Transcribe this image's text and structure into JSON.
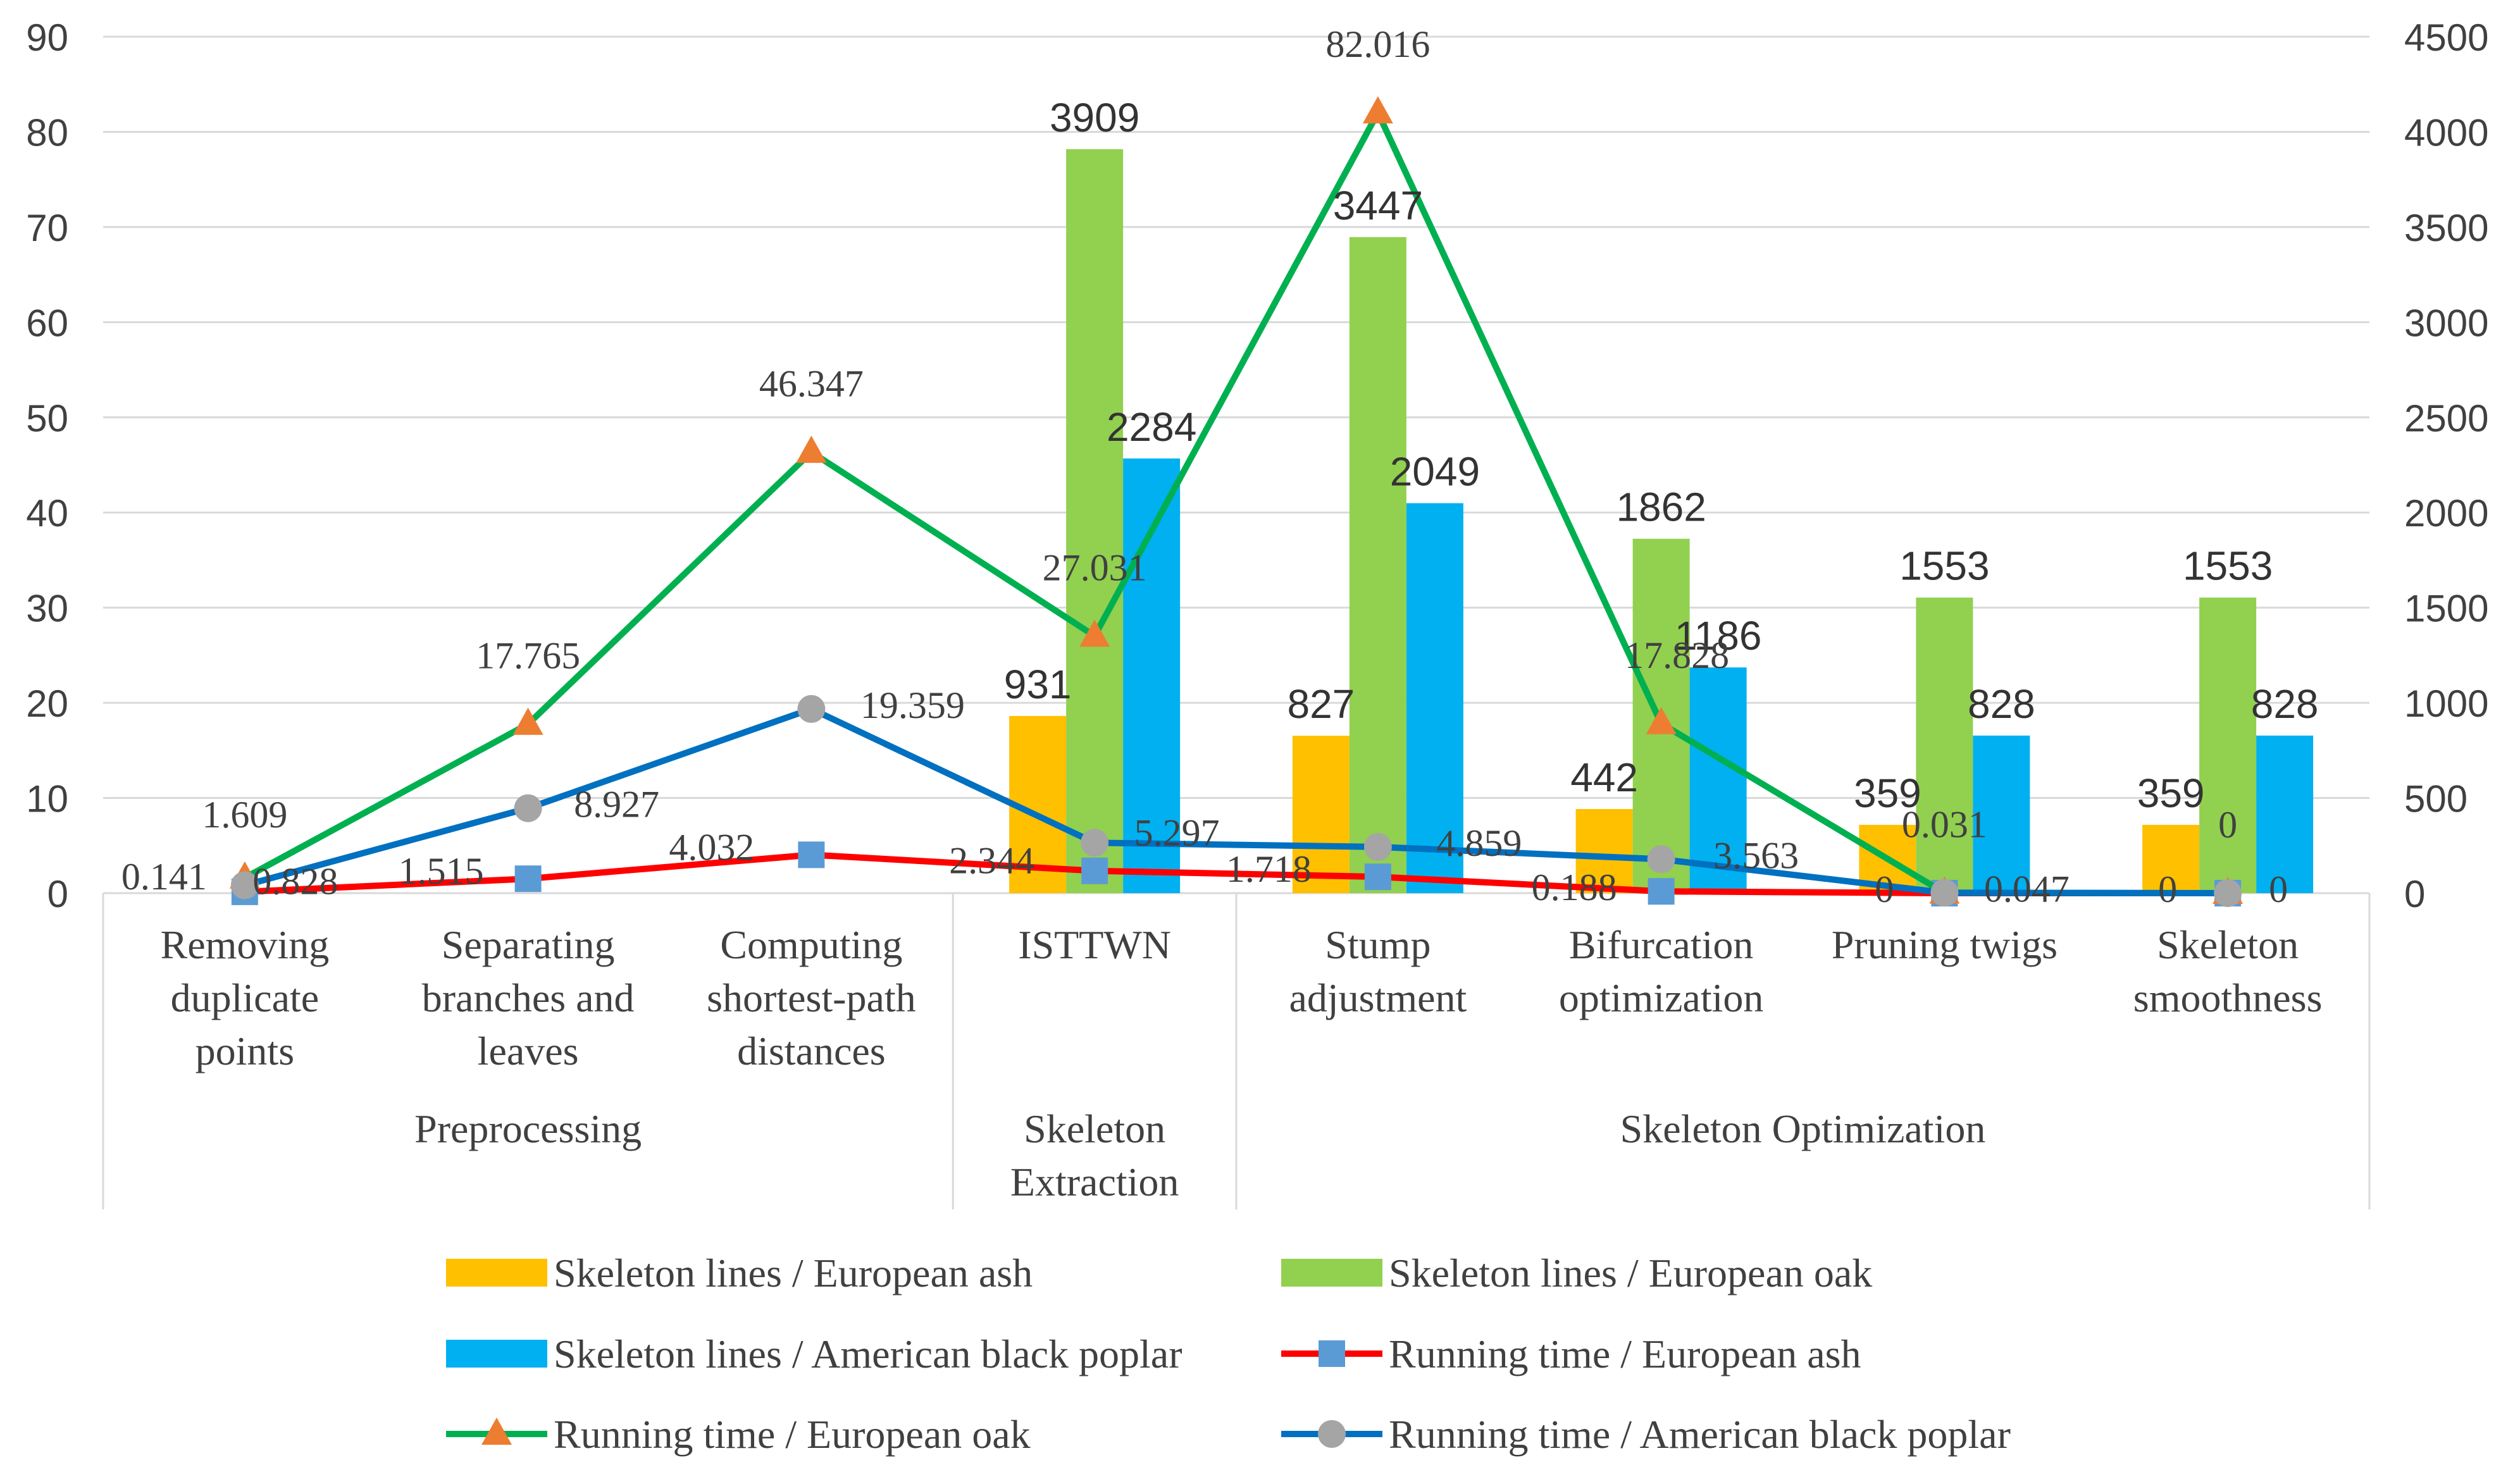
{
  "chart_data": {
    "type": "bar",
    "title": "",
    "categories": [
      "Removing duplicate points",
      "Separating branches and leaves",
      "Computing shortest-path distances",
      "ISTTWN",
      "Stump adjustment",
      "Bifurcation optimization",
      "Pruning twigs",
      "Skeleton smoothness"
    ],
    "category_lines": [
      [
        "Removing",
        "duplicate",
        "points"
      ],
      [
        "Separating",
        "branches and",
        "leaves"
      ],
      [
        "Computing",
        "shortest-path",
        "distances"
      ],
      [
        "ISTTWN"
      ],
      [
        "Stump",
        "adjustment"
      ],
      [
        "Bifurcation",
        "optimization"
      ],
      [
        "Pruning twigs"
      ],
      [
        "Skeleton",
        "smoothness"
      ]
    ],
    "groups": [
      {
        "label_lines": [
          "Preprocessing"
        ],
        "start": 0,
        "end": 2
      },
      {
        "label_lines": [
          "Skeleton",
          "Extraction"
        ],
        "start": 3,
        "end": 3
      },
      {
        "label_lines": [
          "Skeleton Optimization"
        ],
        "start": 4,
        "end": 7
      }
    ],
    "y_left": {
      "min": 0,
      "max": 90,
      "ticks": [
        "0",
        "10",
        "20",
        "30",
        "40",
        "50",
        "60",
        "70",
        "80",
        "90"
      ]
    },
    "y_right": {
      "min": 0,
      "max": 4500,
      "ticks": [
        "0",
        "500",
        "1000",
        "1500",
        "2000",
        "2500",
        "3000",
        "3500",
        "4000",
        "4500"
      ]
    },
    "grid": true,
    "legend_position": "bottom",
    "bar_series": [
      {
        "name": "Skeleton lines /  European ash",
        "color": "#FFC000",
        "values": [
          null,
          null,
          null,
          931,
          827,
          442,
          359,
          359
        ],
        "labels": [
          "",
          "",
          "",
          "931",
          "827",
          "442",
          "359",
          "359"
        ]
      },
      {
        "name": "Skeleton lines /  European oak",
        "color": "#92D050",
        "values": [
          null,
          null,
          null,
          3909,
          3447,
          1862,
          1553,
          1553
        ],
        "labels": [
          "",
          "",
          "",
          "3909",
          "3447",
          "1862",
          "1553",
          "1553"
        ]
      },
      {
        "name": "Skeleton lines /  American black poplar",
        "color": "#00B0F0",
        "values": [
          null,
          null,
          null,
          2284,
          2049,
          1186,
          828,
          828
        ],
        "labels": [
          "",
          "",
          "",
          "2284",
          "2049",
          "1186",
          "828",
          "828"
        ]
      }
    ],
    "line_series": [
      {
        "name": "Running time /  European ash",
        "color": "#FF0000",
        "marker": "square",
        "marker_color": "#5B9BD5",
        "values": [
          0.141,
          1.515,
          4.032,
          2.344,
          1.718,
          0.188,
          0,
          0
        ],
        "labels": [
          "0.141",
          "1.515",
          "4.032",
          "2.344",
          "1.718",
          "0.188",
          "0",
          "0"
        ]
      },
      {
        "name": "Running time /  European oak",
        "color": "#00B050",
        "marker": "triangle",
        "marker_color": "#ED7D31",
        "values": [
          1.609,
          17.765,
          46.347,
          27.031,
          82.016,
          17.828,
          0.031,
          0
        ],
        "labels": [
          "1.609",
          "17.765",
          "46.347",
          "27.031",
          "82.016",
          "17.828",
          "0.031",
          "0"
        ]
      },
      {
        "name": "Running time /  American black poplar",
        "color": "#0070C0",
        "marker": "circle",
        "marker_color": "#A5A5A5",
        "values": [
          0.828,
          8.927,
          19.359,
          5.297,
          4.859,
          3.563,
          0.047,
          0
        ],
        "labels": [
          "0.828",
          "8.927",
          "19.359",
          "5.297",
          "4.859",
          "3.563",
          "0.047",
          "0"
        ]
      }
    ]
  }
}
